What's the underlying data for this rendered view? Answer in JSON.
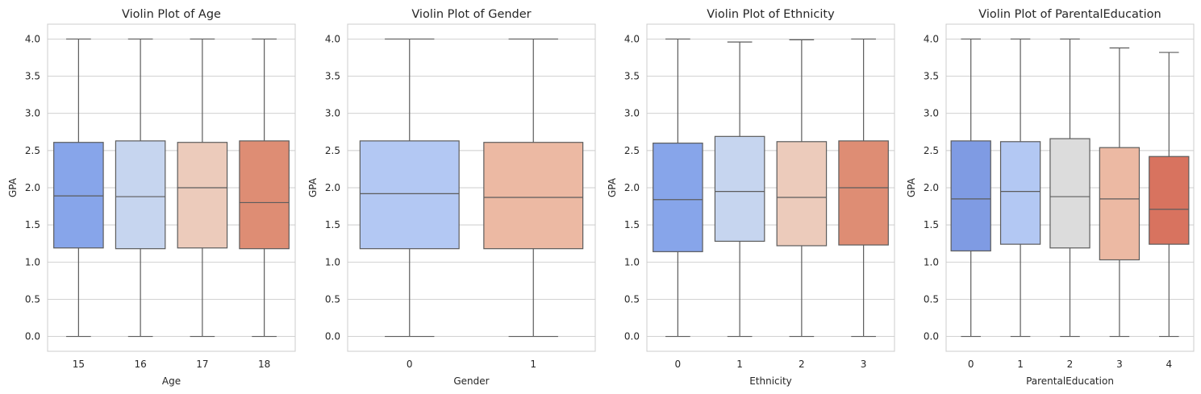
{
  "chart_data": [
    {
      "type": "box",
      "title": "Violin Plot of Age",
      "xlabel": "Age",
      "ylabel": "GPA",
      "ylim": [
        -0.2,
        4.2
      ],
      "yticks": [
        "0.0",
        "0.5",
        "1.0",
        "1.5",
        "2.0",
        "2.5",
        "3.0",
        "3.5",
        "4.0"
      ],
      "grid": true,
      "categories": [
        "15",
        "16",
        "17",
        "18"
      ],
      "colors": [
        "#87a5ea",
        "#c6d5ef",
        "#eccbbb",
        "#de8d74"
      ],
      "boxes": [
        {
          "min": 0.0,
          "q1": 1.19,
          "median": 1.89,
          "q3": 2.61,
          "max": 4.0
        },
        {
          "min": 0.0,
          "q1": 1.18,
          "median": 1.88,
          "q3": 2.63,
          "max": 4.0
        },
        {
          "min": 0.0,
          "q1": 1.19,
          "median": 2.0,
          "q3": 2.61,
          "max": 4.0
        },
        {
          "min": 0.0,
          "q1": 1.18,
          "median": 1.8,
          "q3": 2.63,
          "max": 4.0
        }
      ]
    },
    {
      "type": "box",
      "title": "Violin Plot of Gender",
      "xlabel": "Gender",
      "ylabel": "GPA",
      "ylim": [
        -0.2,
        4.2
      ],
      "yticks": [
        "0.0",
        "0.5",
        "1.0",
        "1.5",
        "2.0",
        "2.5",
        "3.0",
        "3.5",
        "4.0"
      ],
      "grid": true,
      "categories": [
        "0",
        "1"
      ],
      "colors": [
        "#b3c8f3",
        "#ecb9a3"
      ],
      "boxes": [
        {
          "min": 0.0,
          "q1": 1.18,
          "median": 1.92,
          "q3": 2.63,
          "max": 4.0
        },
        {
          "min": 0.0,
          "q1": 1.18,
          "median": 1.87,
          "q3": 2.61,
          "max": 4.0
        }
      ]
    },
    {
      "type": "box",
      "title": "Violin Plot of Ethnicity",
      "xlabel": "Ethnicity",
      "ylabel": "GPA",
      "ylim": [
        -0.2,
        4.2
      ],
      "yticks": [
        "0.0",
        "0.5",
        "1.0",
        "1.5",
        "2.0",
        "2.5",
        "3.0",
        "3.5",
        "4.0"
      ],
      "grid": true,
      "categories": [
        "0",
        "1",
        "2",
        "3"
      ],
      "colors": [
        "#87a5ea",
        "#c6d5ef",
        "#eccbbb",
        "#de8d74"
      ],
      "boxes": [
        {
          "min": 0.0,
          "q1": 1.14,
          "median": 1.84,
          "q3": 2.6,
          "max": 4.0
        },
        {
          "min": 0.0,
          "q1": 1.28,
          "median": 1.95,
          "q3": 2.69,
          "max": 3.96
        },
        {
          "min": 0.0,
          "q1": 1.22,
          "median": 1.87,
          "q3": 2.62,
          "max": 3.99
        },
        {
          "min": 0.0,
          "q1": 1.23,
          "median": 2.0,
          "q3": 2.63,
          "max": 4.0
        }
      ]
    },
    {
      "type": "box",
      "title": "Violin Plot of ParentalEducation",
      "xlabel": "ParentalEducation",
      "ylabel": "GPA",
      "ylim": [
        -0.2,
        4.2
      ],
      "yticks": [
        "0.0",
        "0.5",
        "1.0",
        "1.5",
        "2.0",
        "2.5",
        "3.0",
        "3.5",
        "4.0"
      ],
      "grid": true,
      "categories": [
        "0",
        "1",
        "2",
        "3",
        "4"
      ],
      "colors": [
        "#7f9be3",
        "#b3c8f3",
        "#dcdcdc",
        "#ecb9a3",
        "#d8735f"
      ],
      "boxes": [
        {
          "min": 0.0,
          "q1": 1.15,
          "median": 1.85,
          "q3": 2.63,
          "max": 4.0
        },
        {
          "min": 0.0,
          "q1": 1.24,
          "median": 1.95,
          "q3": 2.62,
          "max": 4.0
        },
        {
          "min": 0.0,
          "q1": 1.19,
          "median": 1.88,
          "q3": 2.66,
          "max": 4.0
        },
        {
          "min": 0.0,
          "q1": 1.03,
          "median": 1.85,
          "q3": 2.54,
          "max": 3.88
        },
        {
          "min": 0.0,
          "q1": 1.24,
          "median": 1.71,
          "q3": 2.42,
          "max": 3.82
        }
      ]
    }
  ]
}
